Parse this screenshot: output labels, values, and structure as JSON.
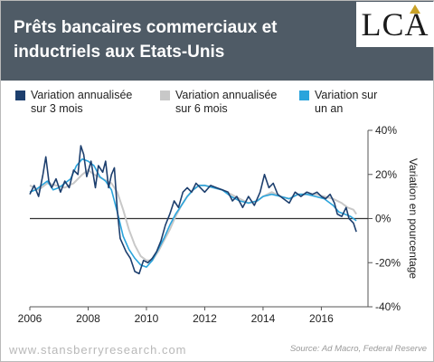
{
  "header": {
    "title": "Prêts bancaires commerciaux et inductriels aux Etats-Unis",
    "logo_text": "LCA"
  },
  "footer": {
    "watermark": "www.stansberryresearch.com",
    "source": "Source: Ad Macro, Federal Reserve"
  },
  "chart_data": {
    "type": "line",
    "ylabel": "Variation en pourcentage",
    "xlim": [
      2006.0,
      2017.6
    ],
    "ylim": [
      -40,
      40
    ],
    "x_ticks": [
      2006,
      2008,
      2010,
      2012,
      2014,
      2016
    ],
    "x_tick_labels": [
      "2006",
      "2008",
      "2010",
      "2012",
      "2014",
      "2016"
    ],
    "y_ticks": [
      40,
      20,
      0,
      -20,
      -40
    ],
    "y_tick_labels": [
      "40%",
      "20%",
      "0%",
      "-20%",
      "-40%"
    ],
    "zero_line": true,
    "legend_position": "top",
    "series": [
      {
        "name": "Variation annualisée\nsur 3 mois",
        "color": "#1d3f6e",
        "points": [
          [
            2006.0,
            11
          ],
          [
            2006.15,
            15
          ],
          [
            2006.3,
            10
          ],
          [
            2006.45,
            20
          ],
          [
            2006.55,
            28
          ],
          [
            2006.65,
            17
          ],
          [
            2006.75,
            14
          ],
          [
            2006.9,
            18
          ],
          [
            2007.05,
            12
          ],
          [
            2007.2,
            17
          ],
          [
            2007.35,
            14
          ],
          [
            2007.5,
            22
          ],
          [
            2007.65,
            20
          ],
          [
            2007.75,
            33
          ],
          [
            2007.85,
            29
          ],
          [
            2007.95,
            19
          ],
          [
            2008.1,
            26
          ],
          [
            2008.25,
            14
          ],
          [
            2008.35,
            24
          ],
          [
            2008.5,
            21
          ],
          [
            2008.6,
            26
          ],
          [
            2008.7,
            14
          ],
          [
            2008.8,
            20
          ],
          [
            2008.9,
            23
          ],
          [
            2009.0,
            4
          ],
          [
            2009.1,
            -9
          ],
          [
            2009.2,
            -12
          ],
          [
            2009.3,
            -15
          ],
          [
            2009.45,
            -18
          ],
          [
            2009.6,
            -24
          ],
          [
            2009.75,
            -25
          ],
          [
            2009.9,
            -19
          ],
          [
            2010.05,
            -20
          ],
          [
            2010.2,
            -18
          ],
          [
            2010.35,
            -15
          ],
          [
            2010.5,
            -10
          ],
          [
            2010.65,
            -3
          ],
          [
            2010.8,
            2
          ],
          [
            2010.95,
            8
          ],
          [
            2011.1,
            5
          ],
          [
            2011.25,
            12
          ],
          [
            2011.4,
            14
          ],
          [
            2011.55,
            12
          ],
          [
            2011.7,
            16
          ],
          [
            2011.85,
            14
          ],
          [
            2012.0,
            12
          ],
          [
            2012.2,
            15
          ],
          [
            2012.4,
            14
          ],
          [
            2012.6,
            13
          ],
          [
            2012.8,
            12
          ],
          [
            2012.95,
            8
          ],
          [
            2013.1,
            10
          ],
          [
            2013.3,
            5
          ],
          [
            2013.5,
            10
          ],
          [
            2013.7,
            6
          ],
          [
            2013.9,
            12
          ],
          [
            2014.05,
            20
          ],
          [
            2014.2,
            14
          ],
          [
            2014.35,
            16
          ],
          [
            2014.5,
            11
          ],
          [
            2014.7,
            9
          ],
          [
            2014.9,
            7
          ],
          [
            2015.1,
            12
          ],
          [
            2015.3,
            10
          ],
          [
            2015.5,
            12
          ],
          [
            2015.7,
            11
          ],
          [
            2015.85,
            12
          ],
          [
            2016.0,
            10
          ],
          [
            2016.15,
            9
          ],
          [
            2016.3,
            11
          ],
          [
            2016.45,
            7
          ],
          [
            2016.55,
            2
          ],
          [
            2016.7,
            1
          ],
          [
            2016.85,
            5
          ],
          [
            2016.95,
            0
          ],
          [
            2017.1,
            -2
          ],
          [
            2017.2,
            -6
          ]
        ]
      },
      {
        "name": "Variation annualisée\nsur 6 mois",
        "color": "#c8c8c8",
        "points": [
          [
            2006.0,
            15
          ],
          [
            2006.3,
            13
          ],
          [
            2006.6,
            16
          ],
          [
            2006.9,
            15
          ],
          [
            2007.2,
            14
          ],
          [
            2007.5,
            16
          ],
          [
            2007.8,
            20
          ],
          [
            2008.0,
            22
          ],
          [
            2008.2,
            20
          ],
          [
            2008.5,
            18
          ],
          [
            2008.8,
            16
          ],
          [
            2009.0,
            12
          ],
          [
            2009.2,
            4
          ],
          [
            2009.4,
            -5
          ],
          [
            2009.6,
            -12
          ],
          [
            2009.8,
            -17
          ],
          [
            2010.0,
            -19
          ],
          [
            2010.2,
            -19
          ],
          [
            2010.4,
            -15
          ],
          [
            2010.6,
            -10
          ],
          [
            2010.8,
            -5
          ],
          [
            2011.0,
            1
          ],
          [
            2011.2,
            6
          ],
          [
            2011.4,
            10
          ],
          [
            2011.6,
            13
          ],
          [
            2011.8,
            15
          ],
          [
            2012.0,
            15
          ],
          [
            2012.3,
            14
          ],
          [
            2012.6,
            13
          ],
          [
            2012.9,
            11
          ],
          [
            2013.2,
            9
          ],
          [
            2013.5,
            7
          ],
          [
            2013.8,
            8
          ],
          [
            2014.0,
            10
          ],
          [
            2014.3,
            12
          ],
          [
            2014.6,
            10
          ],
          [
            2014.9,
            9
          ],
          [
            2015.2,
            11
          ],
          [
            2015.5,
            11
          ],
          [
            2015.8,
            11
          ],
          [
            2016.1,
            10
          ],
          [
            2016.4,
            9
          ],
          [
            2016.7,
            7
          ],
          [
            2016.9,
            5
          ],
          [
            2017.1,
            4
          ],
          [
            2017.2,
            2
          ]
        ]
      },
      {
        "name": "Variation sur\nun an",
        "color": "#2aa4dc",
        "points": [
          [
            2006.0,
            12
          ],
          [
            2006.2,
            13
          ],
          [
            2006.4,
            15
          ],
          [
            2006.6,
            17
          ],
          [
            2006.8,
            13
          ],
          [
            2007.0,
            14
          ],
          [
            2007.2,
            16
          ],
          [
            2007.4,
            18
          ],
          [
            2007.6,
            24
          ],
          [
            2007.8,
            27
          ],
          [
            2008.0,
            26
          ],
          [
            2008.2,
            24
          ],
          [
            2008.4,
            19
          ],
          [
            2008.6,
            17
          ],
          [
            2008.8,
            13
          ],
          [
            2009.0,
            3
          ],
          [
            2009.2,
            -8
          ],
          [
            2009.4,
            -14
          ],
          [
            2009.6,
            -18
          ],
          [
            2009.8,
            -21
          ],
          [
            2010.0,
            -22
          ],
          [
            2010.2,
            -19
          ],
          [
            2010.4,
            -14
          ],
          [
            2010.6,
            -9
          ],
          [
            2010.8,
            -3
          ],
          [
            2011.0,
            2
          ],
          [
            2011.2,
            6
          ],
          [
            2011.4,
            10
          ],
          [
            2011.6,
            13
          ],
          [
            2011.8,
            15
          ],
          [
            2012.0,
            15
          ],
          [
            2012.3,
            14
          ],
          [
            2012.6,
            13
          ],
          [
            2012.9,
            10
          ],
          [
            2013.2,
            8
          ],
          [
            2013.5,
            7
          ],
          [
            2013.8,
            8
          ],
          [
            2014.0,
            10
          ],
          [
            2014.3,
            11
          ],
          [
            2014.6,
            10
          ],
          [
            2014.9,
            9
          ],
          [
            2015.2,
            11
          ],
          [
            2015.5,
            11
          ],
          [
            2015.8,
            10
          ],
          [
            2016.1,
            9
          ],
          [
            2016.4,
            6
          ],
          [
            2016.6,
            3
          ],
          [
            2016.8,
            2
          ],
          [
            2017.0,
            1
          ],
          [
            2017.2,
            -1
          ]
        ]
      }
    ]
  }
}
